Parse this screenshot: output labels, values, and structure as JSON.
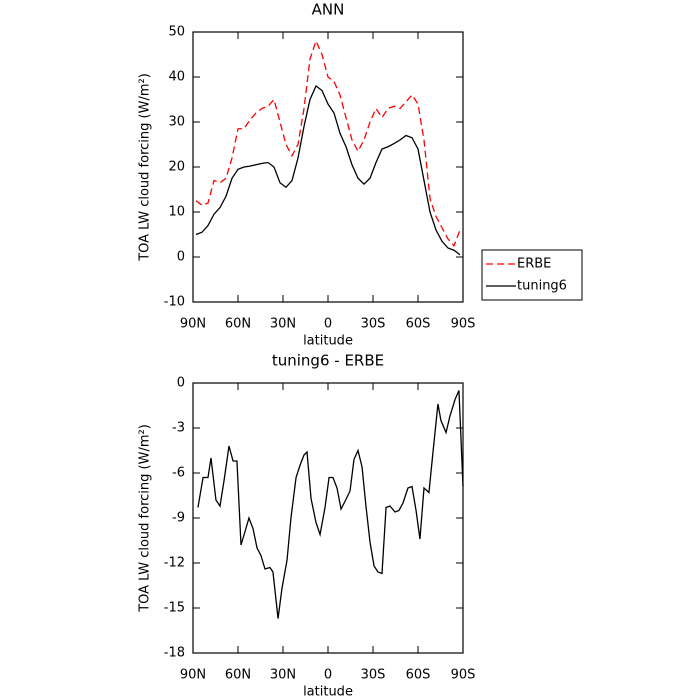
{
  "chart_data": [
    {
      "type": "line",
      "title": "ANN",
      "xlabel": "latitude",
      "ylabel": "TOA LW cloud forcing (W/m²)",
      "x": [
        88,
        84,
        80,
        76,
        72,
        68,
        64,
        60,
        56,
        52,
        48,
        44,
        40,
        36,
        32,
        28,
        24,
        20,
        16,
        12,
        8,
        4,
        0,
        -4,
        -8,
        -12,
        -16,
        -20,
        -24,
        -28,
        -32,
        -36,
        -40,
        -44,
        -48,
        -52,
        -56,
        -60,
        -64,
        -68,
        -72,
        -76,
        -80,
        -84,
        -88
      ],
      "series": [
        {
          "name": "ERBE",
          "color": "#ff0000",
          "line_style": "dashed",
          "values": [
            12.5,
            11.5,
            12,
            17,
            16.5,
            17.5,
            22,
            28.5,
            28.5,
            30.5,
            32,
            33,
            33.5,
            35,
            30,
            25,
            22.5,
            25,
            33,
            44,
            48,
            45,
            40,
            39,
            36,
            31,
            26,
            23.5,
            26,
            30,
            33,
            31,
            33,
            33.5,
            33,
            34.5,
            36,
            34,
            26,
            13,
            9,
            6.5,
            4,
            2.5,
            6
          ]
        },
        {
          "name": "tuning6",
          "color": "#000000",
          "line_style": "solid",
          "values": [
            5,
            5.5,
            7,
            9.5,
            11,
            13.5,
            17.5,
            19.5,
            20,
            20.2,
            20.5,
            20.8,
            21,
            20,
            16.5,
            15.5,
            17,
            22,
            29,
            35,
            38,
            37,
            34,
            32,
            27.5,
            24.5,
            20.5,
            17.5,
            16.2,
            17.5,
            21,
            24,
            24.5,
            25.2,
            26,
            27,
            26.5,
            24,
            17,
            10,
            6,
            3.5,
            2,
            1.5,
            0.5
          ]
        }
      ],
      "xlim": [
        90,
        -90
      ],
      "xticks": [
        {
          "value": 90,
          "label": "90N"
        },
        {
          "value": 60,
          "label": "60N"
        },
        {
          "value": 30,
          "label": "30N"
        },
        0,
        {
          "value": -30,
          "label": "30S"
        },
        {
          "value": -60,
          "label": "60S"
        },
        {
          "value": -90,
          "label": "90S"
        }
      ],
      "ylim": [
        -10,
        50
      ],
      "yticks": [
        -10,
        0,
        10,
        20,
        30,
        40,
        50
      ],
      "legend": "outside-right"
    },
    {
      "type": "line",
      "title": "tuning6 - ERBE",
      "xlabel": "latitude",
      "ylabel": "TOA LW cloud forcing (W/m²)",
      "x": [
        86.7,
        83.3,
        80,
        78,
        74.7,
        72,
        69.3,
        66,
        63.3,
        60.7,
        58,
        55.3,
        52.7,
        50,
        47.3,
        44.7,
        42,
        38.7,
        36.7,
        33.3,
        30.7,
        27.3,
        24.7,
        21.3,
        18.7,
        16,
        14,
        11.3,
        8,
        5.3,
        2,
        -0.7,
        -3.3,
        -6,
        -8.7,
        -11.3,
        -14.7,
        -17.3,
        -20,
        -22.7,
        -25.3,
        -28,
        -30.7,
        -33.3,
        -36,
        -38.7,
        -41.3,
        -44.7,
        -47.3,
        -50,
        -53.3,
        -56,
        -58.7,
        -61.3,
        -64,
        -67.3,
        -70,
        -73.3,
        -75.3,
        -78.7,
        -81.3,
        -84.7,
        -87.3,
        -90
      ],
      "values": [
        -8.3,
        -6.3,
        -6.3,
        -5,
        -7.8,
        -8.2,
        -6.5,
        -4.2,
        -5.2,
        -5.2,
        -10.8,
        -9.9,
        -9,
        -9.7,
        -11,
        -11.5,
        -12.4,
        -12.3,
        -12.6,
        -15.7,
        -13.7,
        -11.8,
        -9,
        -6.3,
        -5.5,
        -4.8,
        -4.6,
        -7.7,
        -9.3,
        -10.1,
        -8.3,
        -6.3,
        -6.3,
        -7,
        -8.4,
        -7.9,
        -7.2,
        -5.1,
        -4.5,
        -5.6,
        -8.2,
        -10.6,
        -12.2,
        -12.6,
        -12.7,
        -8.3,
        -8.2,
        -8.6,
        -8.5,
        -8,
        -7,
        -6.9,
        -8.5,
        -10.4,
        -7,
        -7.3,
        -4.6,
        -1.4,
        -2.5,
        -3.3,
        -2.2,
        -1.1,
        -0.5,
        -6.9
      ],
      "color": "#000000",
      "xlim": [
        90,
        -90
      ],
      "xticks": [
        {
          "value": 90,
          "label": "90N"
        },
        {
          "value": 60,
          "label": "60N"
        },
        {
          "value": 30,
          "label": "30N"
        },
        0,
        {
          "value": -30,
          "label": "30S"
        },
        {
          "value": -60,
          "label": "60S"
        },
        {
          "value": -90,
          "label": "90S"
        }
      ],
      "ylim": [
        -18,
        0
      ],
      "yticks": [
        -18,
        -15,
        -12,
        -9,
        -6,
        -3,
        0
      ]
    }
  ]
}
